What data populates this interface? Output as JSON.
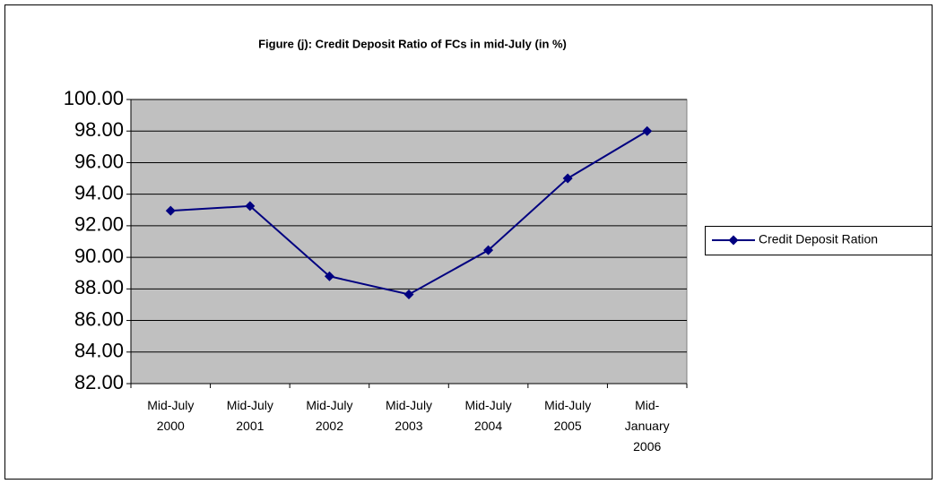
{
  "chart_data": {
    "type": "line",
    "title": "Figure (j): Credit Deposit Ratio of FCs in mid-July (in %)",
    "categories": [
      [
        "Mid-July",
        "2000"
      ],
      [
        "Mid-July",
        "2001"
      ],
      [
        "Mid-July",
        "2002"
      ],
      [
        "Mid-July",
        "2003"
      ],
      [
        "Mid-July",
        "2004"
      ],
      [
        "Mid-July",
        "2005"
      ],
      [
        "Mid-",
        "January",
        "2006"
      ]
    ],
    "series": [
      {
        "name": "Credit Deposit Ration",
        "color": "#000080",
        "values": [
          92.95,
          93.25,
          88.8,
          87.65,
          90.45,
          95.0,
          98.0
        ]
      }
    ],
    "ylim": [
      82,
      100
    ],
    "yticks": [
      {
        "value": 82,
        "label": "82.00"
      },
      {
        "value": 84,
        "label": "84.00"
      },
      {
        "value": 86,
        "label": "86.00"
      },
      {
        "value": 88,
        "label": "88.00"
      },
      {
        "value": 90,
        "label": "90.00"
      },
      {
        "value": 92,
        "label": "92.00"
      },
      {
        "value": 94,
        "label": "94.00"
      },
      {
        "value": 96,
        "label": "96.00"
      },
      {
        "value": 98,
        "label": "98.00"
      },
      {
        "value": 100,
        "label": "100.00"
      }
    ],
    "grid": true,
    "legend": "right",
    "plot_background": "#c0c0c0"
  }
}
